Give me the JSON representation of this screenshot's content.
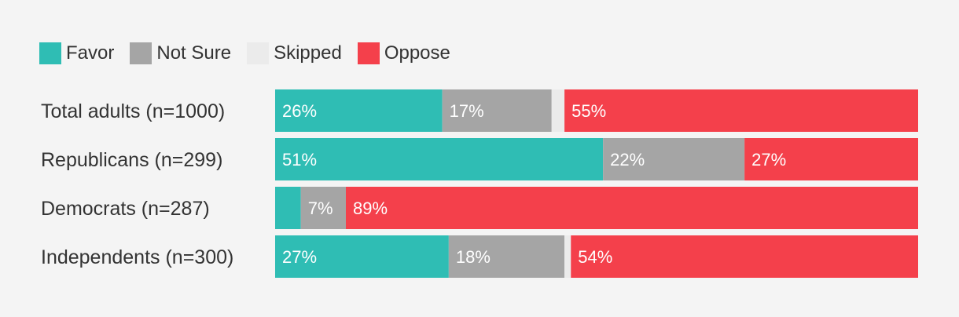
{
  "chart_data": {
    "type": "bar",
    "orientation": "horizontal",
    "stacked": true,
    "legend_position": "top-left",
    "categories": [
      "Total adults (n=1000)",
      "Republicans (n=299)",
      "Democrats (n=287)",
      "Independents (n=300)"
    ],
    "series": [
      {
        "name": "Favor",
        "color": "#2fbdb4",
        "values": [
          26,
          51,
          4,
          27
        ],
        "labels": [
          "26%",
          "51%",
          "",
          "27%"
        ]
      },
      {
        "name": "Not Sure",
        "color": "#a5a5a5",
        "values": [
          17,
          22,
          7,
          18
        ],
        "labels": [
          "17%",
          "22%",
          "7%",
          "18%"
        ]
      },
      {
        "name": "Skipped",
        "color": "#ebebeb",
        "values": [
          2,
          0,
          0,
          1
        ],
        "labels": [
          "",
          "",
          "",
          ""
        ]
      },
      {
        "name": "Oppose",
        "color": "#f4404b",
        "values": [
          55,
          27,
          89,
          54
        ],
        "labels": [
          "55%",
          "27%",
          "89%",
          "54%"
        ]
      }
    ],
    "xlim": [
      0,
      100
    ]
  }
}
